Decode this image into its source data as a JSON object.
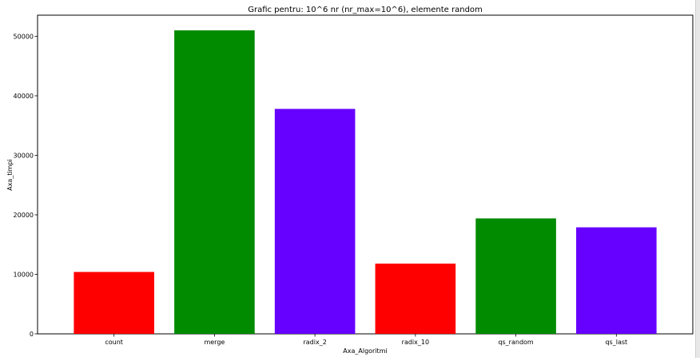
{
  "chart_data": {
    "type": "bar",
    "title": "Grafic pentru: 10^6 nr (nr_max=10^6), elemente random",
    "xlabel": "Axa_Algoritmi",
    "ylabel": "Axa_timpi",
    "categories": [
      "count",
      "merge",
      "radix_2",
      "radix_10",
      "qs_random",
      "qs_last"
    ],
    "values": [
      10400,
      51000,
      37800,
      11800,
      19400,
      17900
    ],
    "colors": [
      "#ff0000",
      "#008b00",
      "#6600ff",
      "#ff0000",
      "#008b00",
      "#6600ff"
    ],
    "yticks": [
      0,
      10000,
      20000,
      30000,
      40000,
      50000
    ],
    "ylim": [
      0,
      53550
    ],
    "grid": false,
    "legend": "none"
  }
}
